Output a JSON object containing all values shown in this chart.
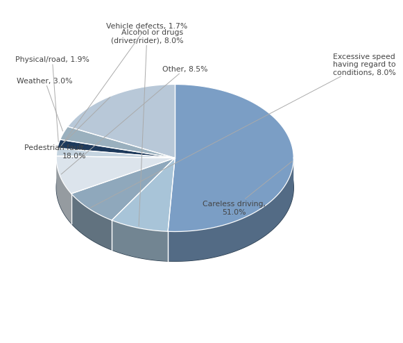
{
  "slices": [
    {
      "label": "Careless driving,\n51.0%",
      "value": 51.0,
      "color": "#7b9ec5"
    },
    {
      "label": "Alcohol or drugs\n(driver/rider), 8.0%",
      "value": 8.0,
      "color": "#a8c4d8"
    },
    {
      "label": "Excessive speed\nhaving regard to\nconditions, 8.0%",
      "value": 8.0,
      "color": "#8fa8bc"
    },
    {
      "label": "Other, 8.5%",
      "value": 8.5,
      "color": "#dce4ec"
    },
    {
      "label": "Vehicle defects, 1.7%",
      "value": 1.7,
      "color": "#c5d4e0"
    },
    {
      "label": "Physical/road, 1.9%",
      "value": 1.9,
      "color": "#1e3a5c"
    },
    {
      "label": "Weather, 3.0%",
      "value": 3.0,
      "color": "#9ab0be"
    },
    {
      "label": "Pedestrian fault,\n18.0%",
      "value": 18.0,
      "color": "#b8c8d8"
    }
  ],
  "background_color": "#ffffff",
  "label_fontsize": 7.8,
  "label_color": "#444444"
}
